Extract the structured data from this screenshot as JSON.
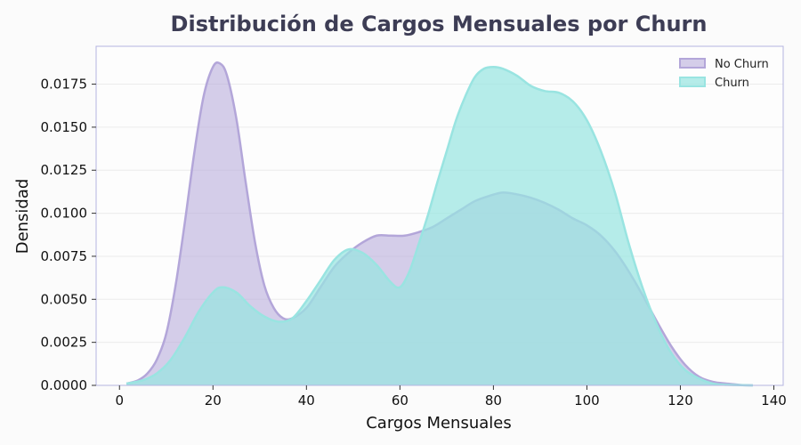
{
  "chart_data": {
    "type": "area",
    "title": "Distribución de Cargos Mensuales por Churn",
    "xlabel": "Cargos Mensuales",
    "ylabel": "Densidad",
    "xlim": [
      -5,
      142
    ],
    "ylim": [
      0,
      0.0197
    ],
    "xticks": [
      0,
      20,
      40,
      60,
      80,
      100,
      120,
      140
    ],
    "yticks": [
      0.0,
      0.0025,
      0.005,
      0.0075,
      0.01,
      0.0125,
      0.015,
      0.0175
    ],
    "ytick_labels": [
      "0.0000",
      "0.0025",
      "0.0050",
      "0.0075",
      "0.0100",
      "0.0125",
      "0.0150",
      "0.0175"
    ],
    "grid": true,
    "legend_position": "top-right",
    "series": [
      {
        "name": "No Churn",
        "color": "#b3a6d9",
        "x": [
          1.5,
          4,
          6,
          8,
          10,
          12,
          14,
          16,
          18,
          20,
          21.5,
          23,
          25,
          27,
          29,
          31,
          33,
          35,
          37,
          40,
          43,
          46,
          49,
          52,
          55,
          58,
          61,
          64,
          67,
          70,
          73,
          76,
          79,
          82,
          85,
          88,
          91,
          94,
          97,
          100,
          103,
          106,
          109,
          112,
          115,
          118,
          121,
          124,
          127,
          130,
          133,
          135.5
        ],
        "values": [
          0.0001,
          0.0003,
          0.0007,
          0.0015,
          0.003,
          0.0058,
          0.0095,
          0.0135,
          0.0168,
          0.0185,
          0.0187,
          0.018,
          0.0155,
          0.0118,
          0.0083,
          0.0058,
          0.0045,
          0.0039,
          0.0039,
          0.0045,
          0.0057,
          0.0069,
          0.0077,
          0.0083,
          0.0087,
          0.0087,
          0.0087,
          0.0089,
          0.0092,
          0.0097,
          0.0102,
          0.0107,
          0.011,
          0.0112,
          0.0111,
          0.0109,
          0.0106,
          0.0102,
          0.0097,
          0.0093,
          0.0087,
          0.0078,
          0.0066,
          0.0052,
          0.0037,
          0.0023,
          0.0012,
          0.0005,
          0.0002,
          0.0001,
          2e-05,
          0.0
        ]
      },
      {
        "name": "Churn",
        "color": "#99e4e1",
        "x": [
          1.5,
          5,
          8,
          11,
          14,
          17,
          20,
          22,
          25,
          28,
          31,
          34,
          37,
          40,
          43,
          46,
          49,
          52,
          55,
          58,
          60,
          62,
          64,
          66,
          68,
          70,
          72,
          74,
          76,
          78,
          80,
          82,
          85,
          88,
          91,
          94,
          97,
          100,
          103,
          106,
          109,
          112,
          115,
          118,
          121,
          124,
          127,
          130,
          135.5
        ],
        "values": [
          0.0001,
          0.0003,
          0.0007,
          0.0015,
          0.0028,
          0.0043,
          0.0054,
          0.0057,
          0.0054,
          0.0046,
          0.004,
          0.0037,
          0.0039,
          0.0049,
          0.0061,
          0.0073,
          0.0079,
          0.0077,
          0.007,
          0.006,
          0.0057,
          0.0066,
          0.0082,
          0.0099,
          0.0118,
          0.0136,
          0.0154,
          0.0168,
          0.0179,
          0.0184,
          0.0185,
          0.0184,
          0.018,
          0.0174,
          0.0171,
          0.017,
          0.0165,
          0.0154,
          0.0136,
          0.0112,
          0.0082,
          0.0056,
          0.0035,
          0.0019,
          0.0009,
          0.0004,
          0.0001,
          3e-05,
          0.0
        ]
      }
    ]
  }
}
